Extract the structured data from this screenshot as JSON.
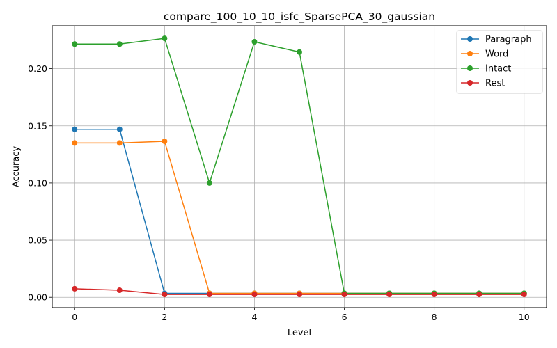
{
  "chart_data": {
    "type": "line",
    "title": "compare_100_10_10_isfc_SparsePCA_30_gaussian",
    "xlabel": "Level",
    "ylabel": "Accuracy",
    "xlim": [
      -0.5,
      10.5
    ],
    "ylim": [
      -0.009,
      0.2375
    ],
    "xticks": [
      0,
      2,
      4,
      6,
      8,
      10
    ],
    "yticks": [
      0.0,
      0.05,
      0.1,
      0.15,
      0.2
    ],
    "ytick_labels": [
      "0.00",
      "0.05",
      "0.10",
      "0.15",
      "0.20"
    ],
    "grid": true,
    "legend_position": "top-right",
    "x": [
      0,
      1,
      2,
      3,
      4,
      5,
      6,
      7,
      8,
      9,
      10
    ],
    "series": [
      {
        "name": "Paragraph",
        "color": "#1f77b4",
        "values": [
          0.147,
          0.147,
          0.0035,
          0.0035,
          0.0035,
          0.0035,
          0.0035,
          0.0035,
          0.0035,
          0.0035,
          0.0035
        ]
      },
      {
        "name": "Word",
        "color": "#ff7f0e",
        "values": [
          0.135,
          0.135,
          0.1365,
          0.0035,
          0.0035,
          0.0035,
          0.0035,
          0.0035,
          0.0035,
          0.0035,
          0.0035
        ]
      },
      {
        "name": "Intact",
        "color": "#2ca02c",
        "values": [
          0.2215,
          0.2215,
          0.2265,
          0.1,
          0.2235,
          0.2145,
          0.0035,
          0.0035,
          0.0035,
          0.0035,
          0.0035
        ]
      },
      {
        "name": "Rest",
        "color": "#d62728",
        "values": [
          0.0075,
          0.0062,
          0.0025,
          0.0025,
          0.0025,
          0.0025,
          0.0025,
          0.0025,
          0.0025,
          0.0025,
          0.0025
        ]
      }
    ]
  }
}
